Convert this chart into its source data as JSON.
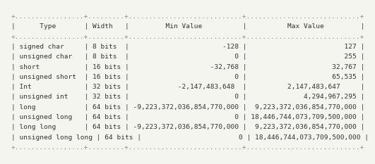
{
  "background_color": "#f5f5f0",
  "text_color": "#333333",
  "font_size": 6.8,
  "font_family": "monospace",
  "table_lines": [
    "+-----------------+---------+----------------------------+----------------------------+",
    "|      Type       | Width   |         Min Value          |          Max Value         |",
    "+-----------------+---------+----------------------------+----------------------------+",
    "| signed char     | 8 bits  |                       -128 |                        127 |",
    "| unsigned char   | 8 bits  |                          0 |                        255 |",
    "| short           | 16 bits |                    -32,768 |                     32,767 |",
    "| unsigned short  | 16 bits |                          0 |                     65,535 |",
    "| Int             | 32 bits |           -2,147,483,648   |          2,147,483,647     |",
    "| unsigned int    | 32 bits |                          0 |              4,294,967,295 |",
    "| long            | 64 bits | -9,223,372,036,854,770,000 |  9,223,372,036,854,770,000 |",
    "| unsigned long   | 64 bits |                          0 | 18,446,744,073,709,500,000 |",
    "| long long       | 64 bits | -9,223,372,036,854,770,000 |  9,223,372,036,854,770,000 |",
    "| unsigned long long | 64 bits |                        0 | 18,446,744,073,709,500,000 |",
    "+-----------------+---------+----------------------------+----------------------------+"
  ]
}
